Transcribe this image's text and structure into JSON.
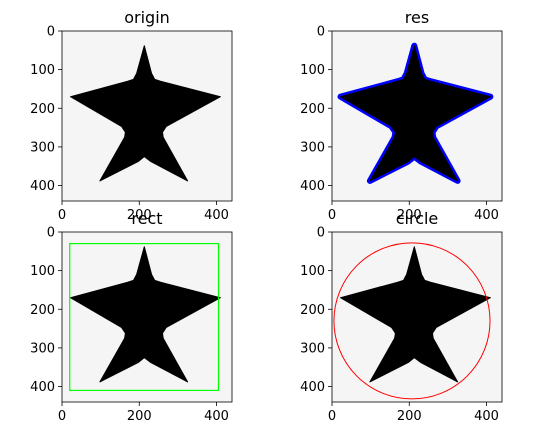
{
  "chart_data": [
    {
      "type": "image",
      "title": "origin",
      "xlim": [
        0,
        440
      ],
      "ylim": [
        440,
        0
      ],
      "xticks": [
        0,
        200,
        400
      ],
      "yticks": [
        0,
        100,
        200,
        300,
        400
      ],
      "background_color": "#f5f5f5",
      "shape_color": "#000000",
      "star": [
        [
          213,
          38
        ],
        [
          232,
          110
        ],
        [
          240,
          125
        ],
        [
          255,
          130
        ],
        [
          410,
          170
        ],
        [
          270,
          247
        ],
        [
          260,
          262
        ],
        [
          262,
          275
        ],
        [
          325,
          388
        ],
        [
          230,
          338
        ],
        [
          213,
          325
        ],
        [
          197,
          338
        ],
        [
          98,
          388
        ],
        [
          162,
          275
        ],
        [
          164,
          262
        ],
        [
          154,
          247
        ],
        [
          22,
          170
        ],
        [
          170,
          130
        ],
        [
          185,
          125
        ],
        [
          193,
          110
        ]
      ]
    },
    {
      "type": "image",
      "title": "res",
      "xlim": [
        0,
        440
      ],
      "ylim": [
        440,
        0
      ],
      "xticks": [
        0,
        200,
        400
      ],
      "yticks": [
        0,
        100,
        200,
        300,
        400
      ],
      "background_color": "#f5f5f5",
      "shape_color": "#000000",
      "overlay": {
        "type": "contour",
        "color": "#0000ff"
      }
    },
    {
      "type": "image",
      "title": "rect",
      "xlim": [
        0,
        440
      ],
      "ylim": [
        440,
        0
      ],
      "xticks": [
        0,
        200,
        400
      ],
      "yticks": [
        0,
        100,
        200,
        300,
        400
      ],
      "background_color": "#f5f5f5",
      "shape_color": "#000000",
      "overlay": {
        "type": "rect",
        "color": "#00ff00",
        "x0": 20,
        "y0": 30,
        "x1": 405,
        "y1": 410
      }
    },
    {
      "type": "image",
      "title": "circle",
      "xlim": [
        0,
        440
      ],
      "ylim": [
        440,
        0
      ],
      "xticks": [
        0,
        200,
        400
      ],
      "yticks": [
        0,
        100,
        200,
        300,
        400
      ],
      "background_color": "#f5f5f5",
      "shape_color": "#000000",
      "overlay": {
        "type": "circle",
        "color": "#ff0000",
        "cx": 207,
        "cy": 230,
        "r": 202
      }
    }
  ]
}
